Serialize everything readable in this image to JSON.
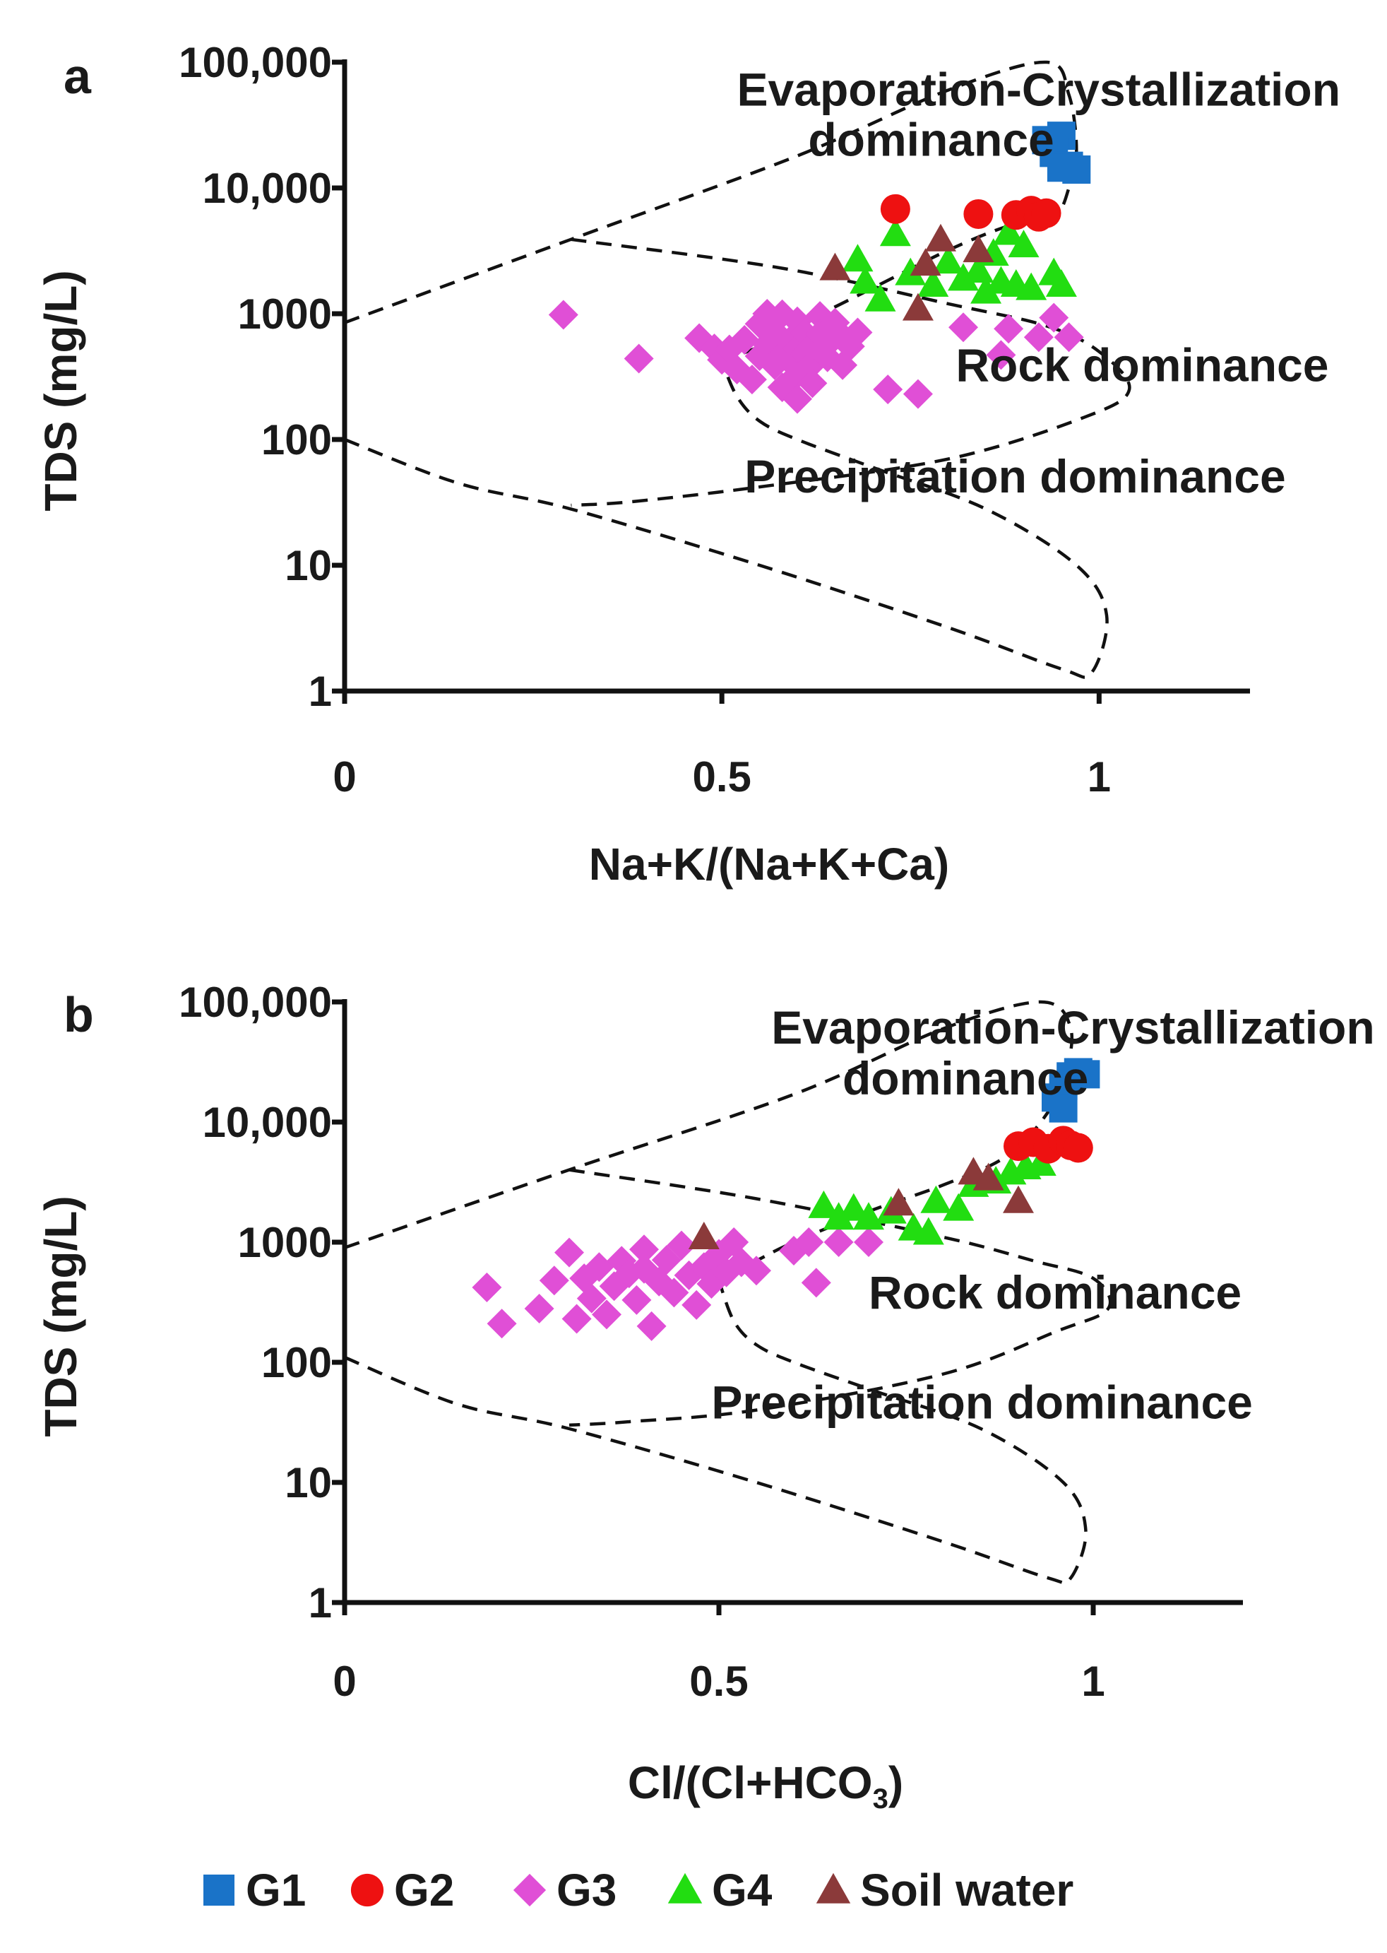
{
  "legend": [
    {
      "key": "G1",
      "label": "G1",
      "shape": "square",
      "color": "#1a73c8"
    },
    {
      "key": "G2",
      "label": "G2",
      "shape": "circle",
      "color": "#ee1111"
    },
    {
      "key": "G3",
      "label": "G3",
      "shape": "diamond",
      "color": "#e04fd6"
    },
    {
      "key": "G4",
      "label": "G4",
      "shape": "triangle",
      "color": "#22dd11"
    },
    {
      "key": "Soil",
      "label": "Soil water",
      "shape": "triangle",
      "color": "#8b3a3a"
    }
  ],
  "chart_data": [
    {
      "type": "scatter",
      "panel": "a",
      "xlabel": "Na+K/(Na+K+Ca)",
      "ylabel": "TDS (mg/L)",
      "yscale": "log",
      "xlim": [
        0,
        1.2
      ],
      "ylim": [
        1,
        100000
      ],
      "x_ticks": [
        {
          "value": 0,
          "label": "0"
        },
        {
          "value": 0.5,
          "label": "0.5"
        },
        {
          "value": 1,
          "label": "1"
        }
      ],
      "y_ticks": [
        {
          "value": 1,
          "label": "1"
        },
        {
          "value": 10,
          "label": "10"
        },
        {
          "value": 100,
          "label": "100"
        },
        {
          "value": 1000,
          "label": "1000"
        },
        {
          "value": 10000,
          "label": "10,000"
        },
        {
          "value": 100000,
          "label": "100,000"
        }
      ],
      "regions": [
        {
          "label": "Evaporation-Crystallization",
          "label2": "dominance",
          "anchor": [
            0.52,
            45000
          ],
          "anchor2": [
            0.52,
            18000
          ]
        },
        {
          "label": "Rock dominance",
          "anchor": [
            0.81,
            290
          ]
        },
        {
          "label": "Precipitation dominance",
          "anchor": [
            0.53,
            38
          ]
        }
      ],
      "boundaries": [
        [
          [
            0,
            850
          ],
          [
            0.3,
            3900
          ],
          [
            0.6,
            18000
          ],
          [
            0.8,
            60000
          ],
          [
            0.93,
            100000
          ],
          [
            0.96,
            55000
          ],
          [
            0.97,
            20000
          ],
          [
            0.96,
            10000
          ],
          [
            0.94,
            6000
          ],
          [
            0.88,
            5000
          ],
          [
            0.8,
            3200
          ],
          [
            0.7,
            1600
          ],
          [
            0.6,
            800
          ],
          [
            0.55,
            550
          ],
          [
            0.5,
            420
          ]
        ],
        [
          [
            0.3,
            3900
          ],
          [
            0.58,
            2300
          ],
          [
            0.8,
            1200
          ],
          [
            0.93,
            800
          ],
          [
            1.0,
            500
          ],
          [
            1.04,
            250
          ],
          [
            0.98,
            150
          ],
          [
            0.8,
            70
          ],
          [
            0.55,
            42
          ],
          [
            0.38,
            32
          ],
          [
            0.3,
            30
          ]
        ],
        [
          [
            0,
            100
          ],
          [
            0.15,
            45
          ],
          [
            0.3,
            28
          ],
          [
            0.55,
            10
          ],
          [
            0.8,
            3.2
          ],
          [
            0.95,
            1.5
          ],
          [
            0.99,
            1.4
          ],
          [
            1.01,
            4
          ],
          [
            0.97,
            10
          ],
          [
            0.85,
            28
          ],
          [
            0.7,
            60
          ],
          [
            0.6,
            100
          ],
          [
            0.55,
            140
          ],
          [
            0.52,
            220
          ],
          [
            0.5,
            420
          ]
        ]
      ],
      "series": [
        {
          "name": "G3",
          "points": [
            [
              0.29,
              980
            ],
            [
              0.39,
              440
            ],
            [
              0.47,
              640
            ],
            [
              0.49,
              530
            ],
            [
              0.5,
              430
            ],
            [
              0.51,
              520
            ],
            [
              0.52,
              360
            ],
            [
              0.53,
              620
            ],
            [
              0.54,
              300
            ],
            [
              0.55,
              460
            ],
            [
              0.55,
              830
            ],
            [
              0.56,
              1000
            ],
            [
              0.56,
              570
            ],
            [
              0.57,
              390
            ],
            [
              0.57,
              720
            ],
            [
              0.58,
              470
            ],
            [
              0.58,
              260
            ],
            [
              0.58,
              990
            ],
            [
              0.59,
              610
            ],
            [
              0.59,
              420
            ],
            [
              0.6,
              330
            ],
            [
              0.6,
              530
            ],
            [
              0.6,
              870
            ],
            [
              0.6,
              210
            ],
            [
              0.61,
              480
            ],
            [
              0.61,
              700
            ],
            [
              0.62,
              400
            ],
            [
              0.62,
              560
            ],
            [
              0.62,
              280
            ],
            [
              0.63,
              960
            ],
            [
              0.63,
              690
            ],
            [
              0.64,
              570
            ],
            [
              0.64,
              450
            ],
            [
              0.65,
              850
            ],
            [
              0.66,
              660
            ],
            [
              0.66,
              390
            ],
            [
              0.67,
              550
            ],
            [
              0.68,
              710
            ],
            [
              0.72,
              250
            ],
            [
              0.76,
              230
            ],
            [
              0.82,
              780
            ],
            [
              0.87,
              470
            ],
            [
              0.88,
              760
            ],
            [
              0.92,
              650
            ],
            [
              0.94,
              930
            ],
            [
              0.96,
              650
            ]
          ]
        },
        {
          "name": "G4",
          "points": [
            [
              0.68,
              2700
            ],
            [
              0.69,
              1800
            ],
            [
              0.71,
              1300
            ],
            [
              0.73,
              4300
            ],
            [
              0.75,
              2100
            ],
            [
              0.78,
              1700
            ],
            [
              0.8,
              2600
            ],
            [
              0.82,
              1900
            ],
            [
              0.84,
              2200
            ],
            [
              0.85,
              1500
            ],
            [
              0.86,
              3000
            ],
            [
              0.87,
              1800
            ],
            [
              0.88,
              4400
            ],
            [
              0.89,
              1700
            ],
            [
              0.9,
              3500
            ],
            [
              0.91,
              1600
            ],
            [
              0.94,
              2100
            ],
            [
              0.95,
              1700
            ]
          ]
        },
        {
          "name": "Soil",
          "points": [
            [
              0.65,
              2300
            ],
            [
              0.76,
              1100
            ],
            [
              0.77,
              2500
            ],
            [
              0.79,
              3900
            ],
            [
              0.84,
              3200
            ]
          ]
        },
        {
          "name": "G2",
          "points": [
            [
              0.73,
              6800
            ],
            [
              0.84,
              6200
            ],
            [
              0.89,
              6100
            ],
            [
              0.91,
              6600
            ],
            [
              0.92,
              5900
            ],
            [
              0.93,
              6300
            ]
          ]
        },
        {
          "name": "G1",
          "points": [
            [
              0.93,
              24000
            ],
            [
              0.95,
              26000
            ],
            [
              0.94,
              19000
            ],
            [
              0.96,
              15000
            ],
            [
              0.97,
              14000
            ],
            [
              0.95,
              14500
            ]
          ]
        }
      ]
    },
    {
      "type": "scatter",
      "panel": "b",
      "xlabel": "Cl/(Cl+HCO",
      "xlabel_sub": "3",
      "xlabel_end": ")",
      "ylabel": "TDS (mg/L)",
      "yscale": "log",
      "xlim": [
        0,
        1.2
      ],
      "ylim": [
        1,
        100000
      ],
      "x_ticks": [
        {
          "value": 0,
          "label": "0"
        },
        {
          "value": 0.5,
          "label": "0.5"
        },
        {
          "value": 1,
          "label": "1"
        }
      ],
      "y_ticks": [
        {
          "value": 1,
          "label": "1"
        },
        {
          "value": 10,
          "label": "10"
        },
        {
          "value": 100,
          "label": "100"
        },
        {
          "value": 1000,
          "label": "1000"
        },
        {
          "value": 10000,
          "label": "10,000"
        },
        {
          "value": 100000,
          "label": "100,000"
        }
      ],
      "regions": [
        {
          "label": "Evaporation-Crystallization",
          "label2": "dominance",
          "anchor": [
            0.57,
            45000
          ],
          "anchor2": [
            0.57,
            17000
          ]
        },
        {
          "label": "Rock dominance",
          "anchor": [
            0.7,
            280
          ]
        },
        {
          "label": "Precipitation dominance",
          "anchor": [
            0.49,
            34
          ]
        }
      ],
      "boundaries": [
        [
          [
            0,
            900
          ],
          [
            0.3,
            4000
          ],
          [
            0.6,
            17000
          ],
          [
            0.8,
            60000
          ],
          [
            0.93,
            100000
          ],
          [
            0.97,
            60000
          ],
          [
            0.96,
            22000
          ],
          [
            0.93,
            10000
          ],
          [
            0.88,
            5000
          ],
          [
            0.8,
            3000
          ],
          [
            0.7,
            1800
          ],
          [
            0.6,
            1000
          ],
          [
            0.55,
            700
          ],
          [
            0.5,
            480
          ]
        ],
        [
          [
            0.3,
            4000
          ],
          [
            0.55,
            2300
          ],
          [
            0.8,
            1100
          ],
          [
            0.92,
            700
          ],
          [
            1.0,
            500
          ],
          [
            1.02,
            280
          ],
          [
            0.95,
            180
          ],
          [
            0.8,
            80
          ],
          [
            0.55,
            40
          ],
          [
            0.38,
            32
          ],
          [
            0.3,
            30
          ]
        ],
        [
          [
            0,
            110
          ],
          [
            0.15,
            45
          ],
          [
            0.3,
            28
          ],
          [
            0.55,
            10
          ],
          [
            0.8,
            3.2
          ],
          [
            0.94,
            1.6
          ],
          [
            0.97,
            1.6
          ],
          [
            0.99,
            4
          ],
          [
            0.96,
            10
          ],
          [
            0.85,
            28
          ],
          [
            0.7,
            60
          ],
          [
            0.6,
            100
          ],
          [
            0.55,
            140
          ],
          [
            0.52,
            220
          ],
          [
            0.5,
            480
          ]
        ]
      ],
      "series": [
        {
          "name": "G3",
          "points": [
            [
              0.19,
              420
            ],
            [
              0.21,
              210
            ],
            [
              0.26,
              280
            ],
            [
              0.28,
              480
            ],
            [
              0.3,
              820
            ],
            [
              0.31,
              230
            ],
            [
              0.32,
              500
            ],
            [
              0.33,
              340
            ],
            [
              0.34,
              620
            ],
            [
              0.35,
              250
            ],
            [
              0.36,
              430
            ],
            [
              0.37,
              700
            ],
            [
              0.38,
              550
            ],
            [
              0.39,
              330
            ],
            [
              0.4,
              600
            ],
            [
              0.4,
              870
            ],
            [
              0.41,
              200
            ],
            [
              0.42,
              470
            ],
            [
              0.43,
              710
            ],
            [
              0.44,
              380
            ],
            [
              0.45,
              940
            ],
            [
              0.46,
              530
            ],
            [
              0.47,
              300
            ],
            [
              0.48,
              620
            ],
            [
              0.49,
              450
            ],
            [
              0.5,
              800
            ],
            [
              0.51,
              560
            ],
            [
              0.52,
              1000
            ],
            [
              0.53,
              680
            ],
            [
              0.55,
              580
            ],
            [
              0.6,
              850
            ],
            [
              0.62,
              1000
            ],
            [
              0.63,
              460
            ],
            [
              0.66,
              1000
            ],
            [
              0.7,
              1000
            ]
          ]
        },
        {
          "name": "G4",
          "points": [
            [
              0.64,
              2000
            ],
            [
              0.66,
              1600
            ],
            [
              0.68,
              1900
            ],
            [
              0.7,
              1600
            ],
            [
              0.73,
              1800
            ],
            [
              0.76,
              1300
            ],
            [
              0.78,
              1200
            ],
            [
              0.79,
              2200
            ],
            [
              0.82,
              1900
            ],
            [
              0.84,
              3000
            ],
            [
              0.87,
              3200
            ],
            [
              0.89,
              3800
            ],
            [
              0.91,
              4200
            ],
            [
              0.93,
              4500
            ]
          ]
        },
        {
          "name": "Soil",
          "points": [
            [
              0.48,
              1100
            ],
            [
              0.74,
              2100
            ],
            [
              0.84,
              3800
            ],
            [
              0.86,
              3400
            ],
            [
              0.9,
              2200
            ]
          ]
        },
        {
          "name": "G2",
          "points": [
            [
              0.9,
              6300
            ],
            [
              0.92,
              6800
            ],
            [
              0.94,
              6000
            ],
            [
              0.96,
              7000
            ],
            [
              0.97,
              6400
            ],
            [
              0.98,
              6100
            ]
          ]
        },
        {
          "name": "G1",
          "points": [
            [
              0.95,
              16000
            ],
            [
              0.96,
              20000
            ],
            [
              0.97,
              24000
            ],
            [
              0.98,
              26000
            ],
            [
              0.99,
              25000
            ],
            [
              0.96,
              13000
            ]
          ]
        }
      ]
    }
  ]
}
